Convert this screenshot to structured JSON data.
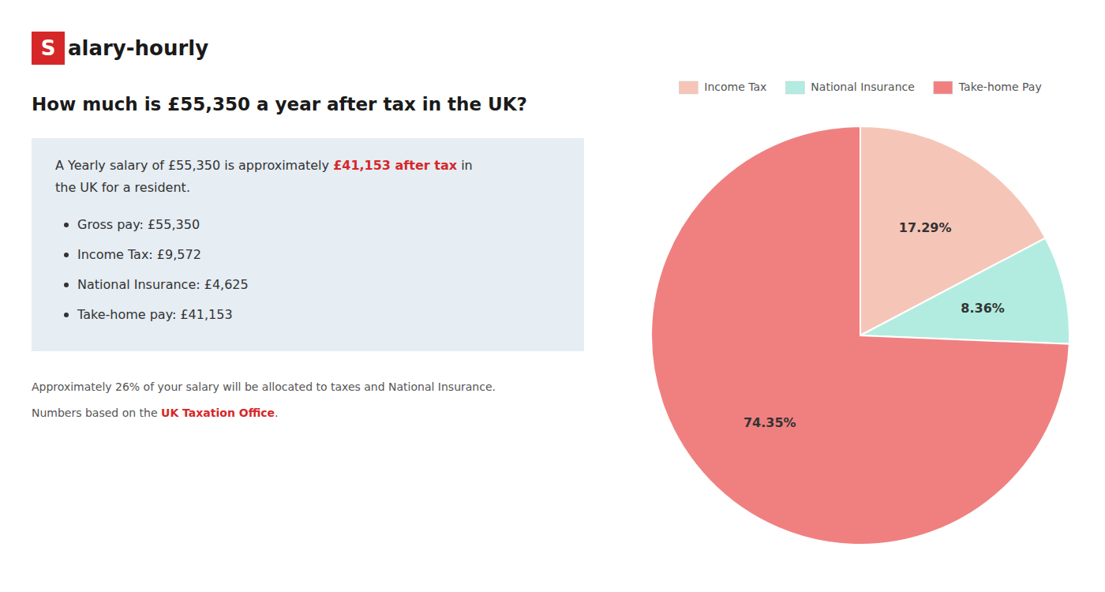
{
  "chart_data": {
    "type": "pie",
    "title": "How much is £55,350 a year after tax in the UK?",
    "categories": [
      "Income Tax",
      "National Insurance",
      "Take-home Pay"
    ],
    "values": [
      17.29,
      8.36,
      74.35
    ],
    "value_labels": [
      "17.29%",
      "8.36%",
      "74.35%"
    ],
    "colors": [
      "#f5c6b8",
      "#b2ece0",
      "#f08080"
    ],
    "data_labels": true,
    "legend": "top",
    "annotations": [
      [
        "S",
        "alary-hourly"
      ],
      [
        "A Yearly salary of £55,350 is approximately ",
        "£41,153 after tax",
        " in"
      ],
      [
        "the UK for a resident."
      ],
      [
        "Gross pay: £55,350"
      ],
      [
        "Income Tax: £9,572"
      ],
      [
        "National Insurance: £4,625"
      ],
      [
        "Take-home pay: £41,153"
      ],
      [
        "Approximately 26% of your salary will be allocated to taxes and National Insurance."
      ],
      [
        "Numbers based on the ",
        "UK Taxation Office",
        "."
      ]
    ]
  }
}
